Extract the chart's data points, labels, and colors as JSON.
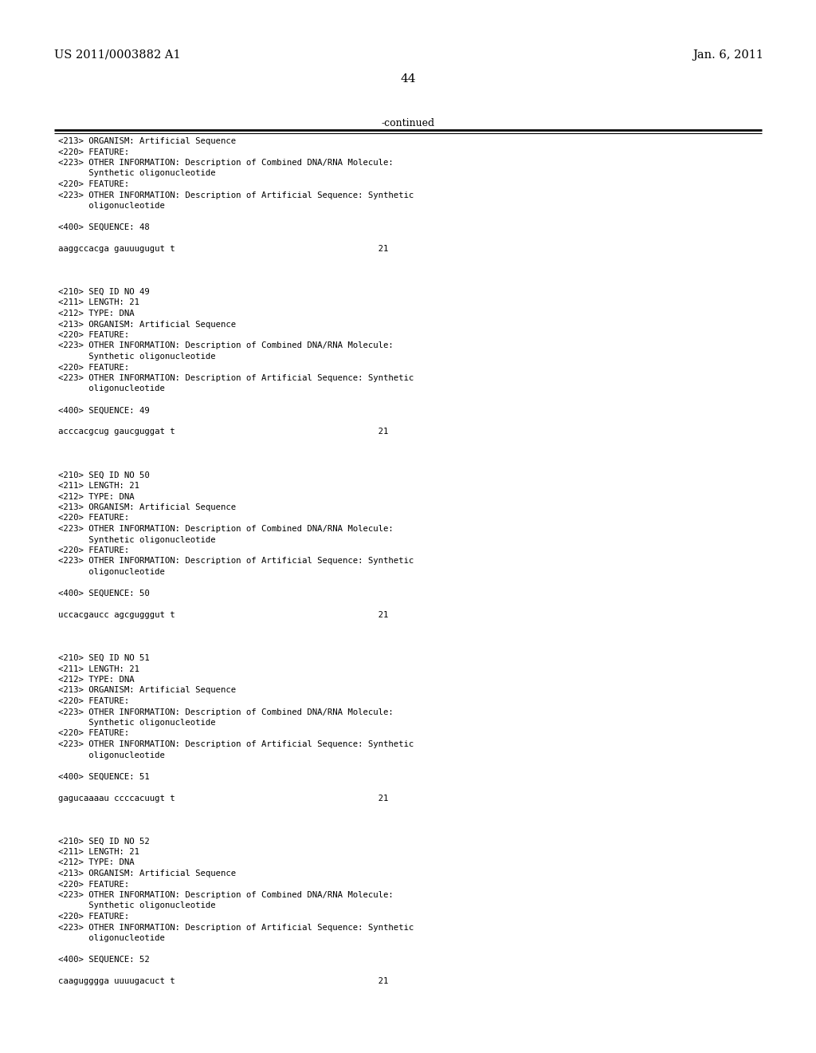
{
  "header_left": "US 2011/0003882 A1",
  "header_right": "Jan. 6, 2011",
  "page_number": "44",
  "continued_label": "-continued",
  "background_color": "#ffffff",
  "text_color": "#000000",
  "content_lines": [
    {
      "text": "<213> ORGANISM: Artificial Sequence",
      "blank": false
    },
    {
      "text": "<220> FEATURE:",
      "blank": false
    },
    {
      "text": "<223> OTHER INFORMATION: Description of Combined DNA/RNA Molecule:",
      "blank": false
    },
    {
      "text": "      Synthetic oligonucleotide",
      "blank": false
    },
    {
      "text": "<220> FEATURE:",
      "blank": false
    },
    {
      "text": "<223> OTHER INFORMATION: Description of Artificial Sequence: Synthetic",
      "blank": false
    },
    {
      "text": "      oligonucleotide",
      "blank": false
    },
    {
      "text": "",
      "blank": true
    },
    {
      "text": "<400> SEQUENCE: 48",
      "blank": false
    },
    {
      "text": "",
      "blank": true
    },
    {
      "text": "aaggccacga gauuugugut t                                        21",
      "blank": false
    },
    {
      "text": "",
      "blank": true
    },
    {
      "text": "",
      "blank": true
    },
    {
      "text": "",
      "blank": true
    },
    {
      "text": "<210> SEQ ID NO 49",
      "blank": false
    },
    {
      "text": "<211> LENGTH: 21",
      "blank": false
    },
    {
      "text": "<212> TYPE: DNA",
      "blank": false
    },
    {
      "text": "<213> ORGANISM: Artificial Sequence",
      "blank": false
    },
    {
      "text": "<220> FEATURE:",
      "blank": false
    },
    {
      "text": "<223> OTHER INFORMATION: Description of Combined DNA/RNA Molecule:",
      "blank": false
    },
    {
      "text": "      Synthetic oligonucleotide",
      "blank": false
    },
    {
      "text": "<220> FEATURE:",
      "blank": false
    },
    {
      "text": "<223> OTHER INFORMATION: Description of Artificial Sequence: Synthetic",
      "blank": false
    },
    {
      "text": "      oligonucleotide",
      "blank": false
    },
    {
      "text": "",
      "blank": true
    },
    {
      "text": "<400> SEQUENCE: 49",
      "blank": false
    },
    {
      "text": "",
      "blank": true
    },
    {
      "text": "acccacgcug gaucguggat t                                        21",
      "blank": false
    },
    {
      "text": "",
      "blank": true
    },
    {
      "text": "",
      "blank": true
    },
    {
      "text": "",
      "blank": true
    },
    {
      "text": "<210> SEQ ID NO 50",
      "blank": false
    },
    {
      "text": "<211> LENGTH: 21",
      "blank": false
    },
    {
      "text": "<212> TYPE: DNA",
      "blank": false
    },
    {
      "text": "<213> ORGANISM: Artificial Sequence",
      "blank": false
    },
    {
      "text": "<220> FEATURE:",
      "blank": false
    },
    {
      "text": "<223> OTHER INFORMATION: Description of Combined DNA/RNA Molecule:",
      "blank": false
    },
    {
      "text": "      Synthetic oligonucleotide",
      "blank": false
    },
    {
      "text": "<220> FEATURE:",
      "blank": false
    },
    {
      "text": "<223> OTHER INFORMATION: Description of Artificial Sequence: Synthetic",
      "blank": false
    },
    {
      "text": "      oligonucleotide",
      "blank": false
    },
    {
      "text": "",
      "blank": true
    },
    {
      "text": "<400> SEQUENCE: 50",
      "blank": false
    },
    {
      "text": "",
      "blank": true
    },
    {
      "text": "uccacgaucc agcgugggut t                                        21",
      "blank": false
    },
    {
      "text": "",
      "blank": true
    },
    {
      "text": "",
      "blank": true
    },
    {
      "text": "",
      "blank": true
    },
    {
      "text": "<210> SEQ ID NO 51",
      "blank": false
    },
    {
      "text": "<211> LENGTH: 21",
      "blank": false
    },
    {
      "text": "<212> TYPE: DNA",
      "blank": false
    },
    {
      "text": "<213> ORGANISM: Artificial Sequence",
      "blank": false
    },
    {
      "text": "<220> FEATURE:",
      "blank": false
    },
    {
      "text": "<223> OTHER INFORMATION: Description of Combined DNA/RNA Molecule:",
      "blank": false
    },
    {
      "text": "      Synthetic oligonucleotide",
      "blank": false
    },
    {
      "text": "<220> FEATURE:",
      "blank": false
    },
    {
      "text": "<223> OTHER INFORMATION: Description of Artificial Sequence: Synthetic",
      "blank": false
    },
    {
      "text": "      oligonucleotide",
      "blank": false
    },
    {
      "text": "",
      "blank": true
    },
    {
      "text": "<400> SEQUENCE: 51",
      "blank": false
    },
    {
      "text": "",
      "blank": true
    },
    {
      "text": "gagucaaaau ccccacuugt t                                        21",
      "blank": false
    },
    {
      "text": "",
      "blank": true
    },
    {
      "text": "",
      "blank": true
    },
    {
      "text": "",
      "blank": true
    },
    {
      "text": "<210> SEQ ID NO 52",
      "blank": false
    },
    {
      "text": "<211> LENGTH: 21",
      "blank": false
    },
    {
      "text": "<212> TYPE: DNA",
      "blank": false
    },
    {
      "text": "<213> ORGANISM: Artificial Sequence",
      "blank": false
    },
    {
      "text": "<220> FEATURE:",
      "blank": false
    },
    {
      "text": "<223> OTHER INFORMATION: Description of Combined DNA/RNA Molecule:",
      "blank": false
    },
    {
      "text": "      Synthetic oligonucleotide",
      "blank": false
    },
    {
      "text": "<220> FEATURE:",
      "blank": false
    },
    {
      "text": "<223> OTHER INFORMATION: Description of Artificial Sequence: Synthetic",
      "blank": false
    },
    {
      "text": "      oligonucleotide",
      "blank": false
    },
    {
      "text": "",
      "blank": true
    },
    {
      "text": "<400> SEQUENCE: 52",
      "blank": false
    },
    {
      "text": "",
      "blank": true
    },
    {
      "text": "caagugggga uuuugacuct t                                        21",
      "blank": false
    }
  ]
}
